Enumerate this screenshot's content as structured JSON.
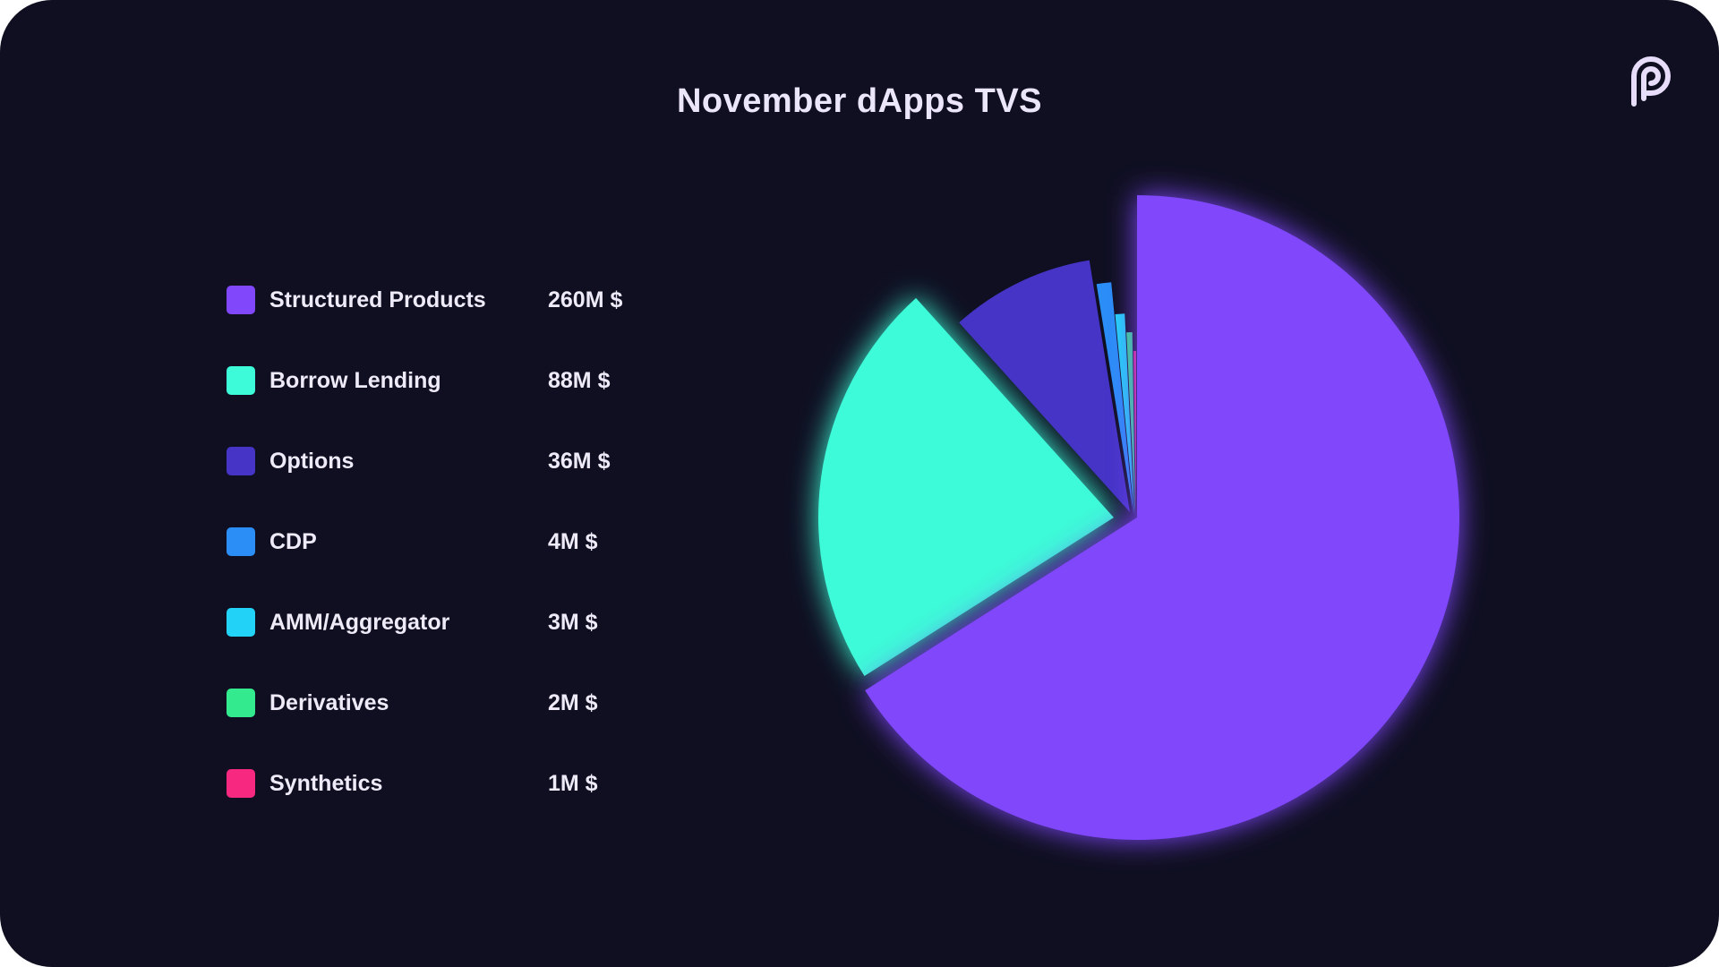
{
  "chart_data": {
    "type": "pie",
    "title": "November dApps TVS",
    "unit_suffix": "M $",
    "slices": [
      {
        "label": "Structured Products",
        "value": 260,
        "display": "260M $",
        "color": "#8047fb"
      },
      {
        "label": "Borrow Lending",
        "value": 88,
        "display": "88M $",
        "color": "#3dfbd8"
      },
      {
        "label": "Options",
        "value": 36,
        "display": "36M $",
        "color": "#4534c6"
      },
      {
        "label": "CDP",
        "value": 4,
        "display": "4M $",
        "color": "#2b8ef7"
      },
      {
        "label": "AMM/Aggregator",
        "value": 3,
        "display": "3M $",
        "color": "#23d3f7"
      },
      {
        "label": "Derivatives",
        "value": 2,
        "display": "2M $",
        "color": "#34ea8e"
      },
      {
        "label": "Synthetics",
        "value": 1,
        "display": "1M $",
        "color": "#f6287f"
      }
    ],
    "legend_position": "left"
  },
  "colors": {
    "background": "#0f0f21",
    "text": "#eeeaf8",
    "logo": "#e7dcf9"
  },
  "logo": {
    "icon": "p-logo-icon"
  }
}
